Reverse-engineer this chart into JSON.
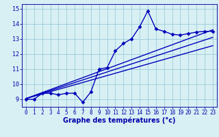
{
  "xlabel": "Graphe des températures (°c)",
  "xlim": [
    -0.5,
    23.5
  ],
  "ylim": [
    8.5,
    15.3
  ],
  "yticks": [
    9,
    10,
    11,
    12,
    13,
    14,
    15
  ],
  "xticks": [
    0,
    1,
    2,
    3,
    4,
    5,
    6,
    7,
    8,
    9,
    10,
    11,
    12,
    13,
    14,
    15,
    16,
    17,
    18,
    19,
    20,
    21,
    22,
    23
  ],
  "main_x": [
    0,
    1,
    2,
    3,
    4,
    5,
    6,
    7,
    8,
    9,
    10,
    11,
    12,
    13,
    14,
    15,
    16,
    17,
    18,
    19,
    20,
    21,
    22,
    23
  ],
  "main_y": [
    9.0,
    9.0,
    9.4,
    9.4,
    9.3,
    9.4,
    9.4,
    8.8,
    9.5,
    11.0,
    11.1,
    12.2,
    12.7,
    13.0,
    13.8,
    14.85,
    13.65,
    13.5,
    13.3,
    13.25,
    13.35,
    13.45,
    13.5,
    13.5
  ],
  "line_color": "#0000bb",
  "bg_color": "#d8f0f4",
  "grid_color": "#99ccd8",
  "spine_color": "#2222aa",
  "tick_label_color": "#0000aa",
  "xlabel_color": "#0000aa",
  "marker": "D",
  "marker_size": 2.5,
  "line_width": 1.0,
  "trend_lines": [
    {
      "x": [
        0,
        23
      ],
      "y": [
        9.05,
        13.6
      ]
    },
    {
      "x": [
        0,
        23
      ],
      "y": [
        9.05,
        13.1
      ]
    },
    {
      "x": [
        0,
        23
      ],
      "y": [
        9.05,
        12.55
      ]
    }
  ]
}
